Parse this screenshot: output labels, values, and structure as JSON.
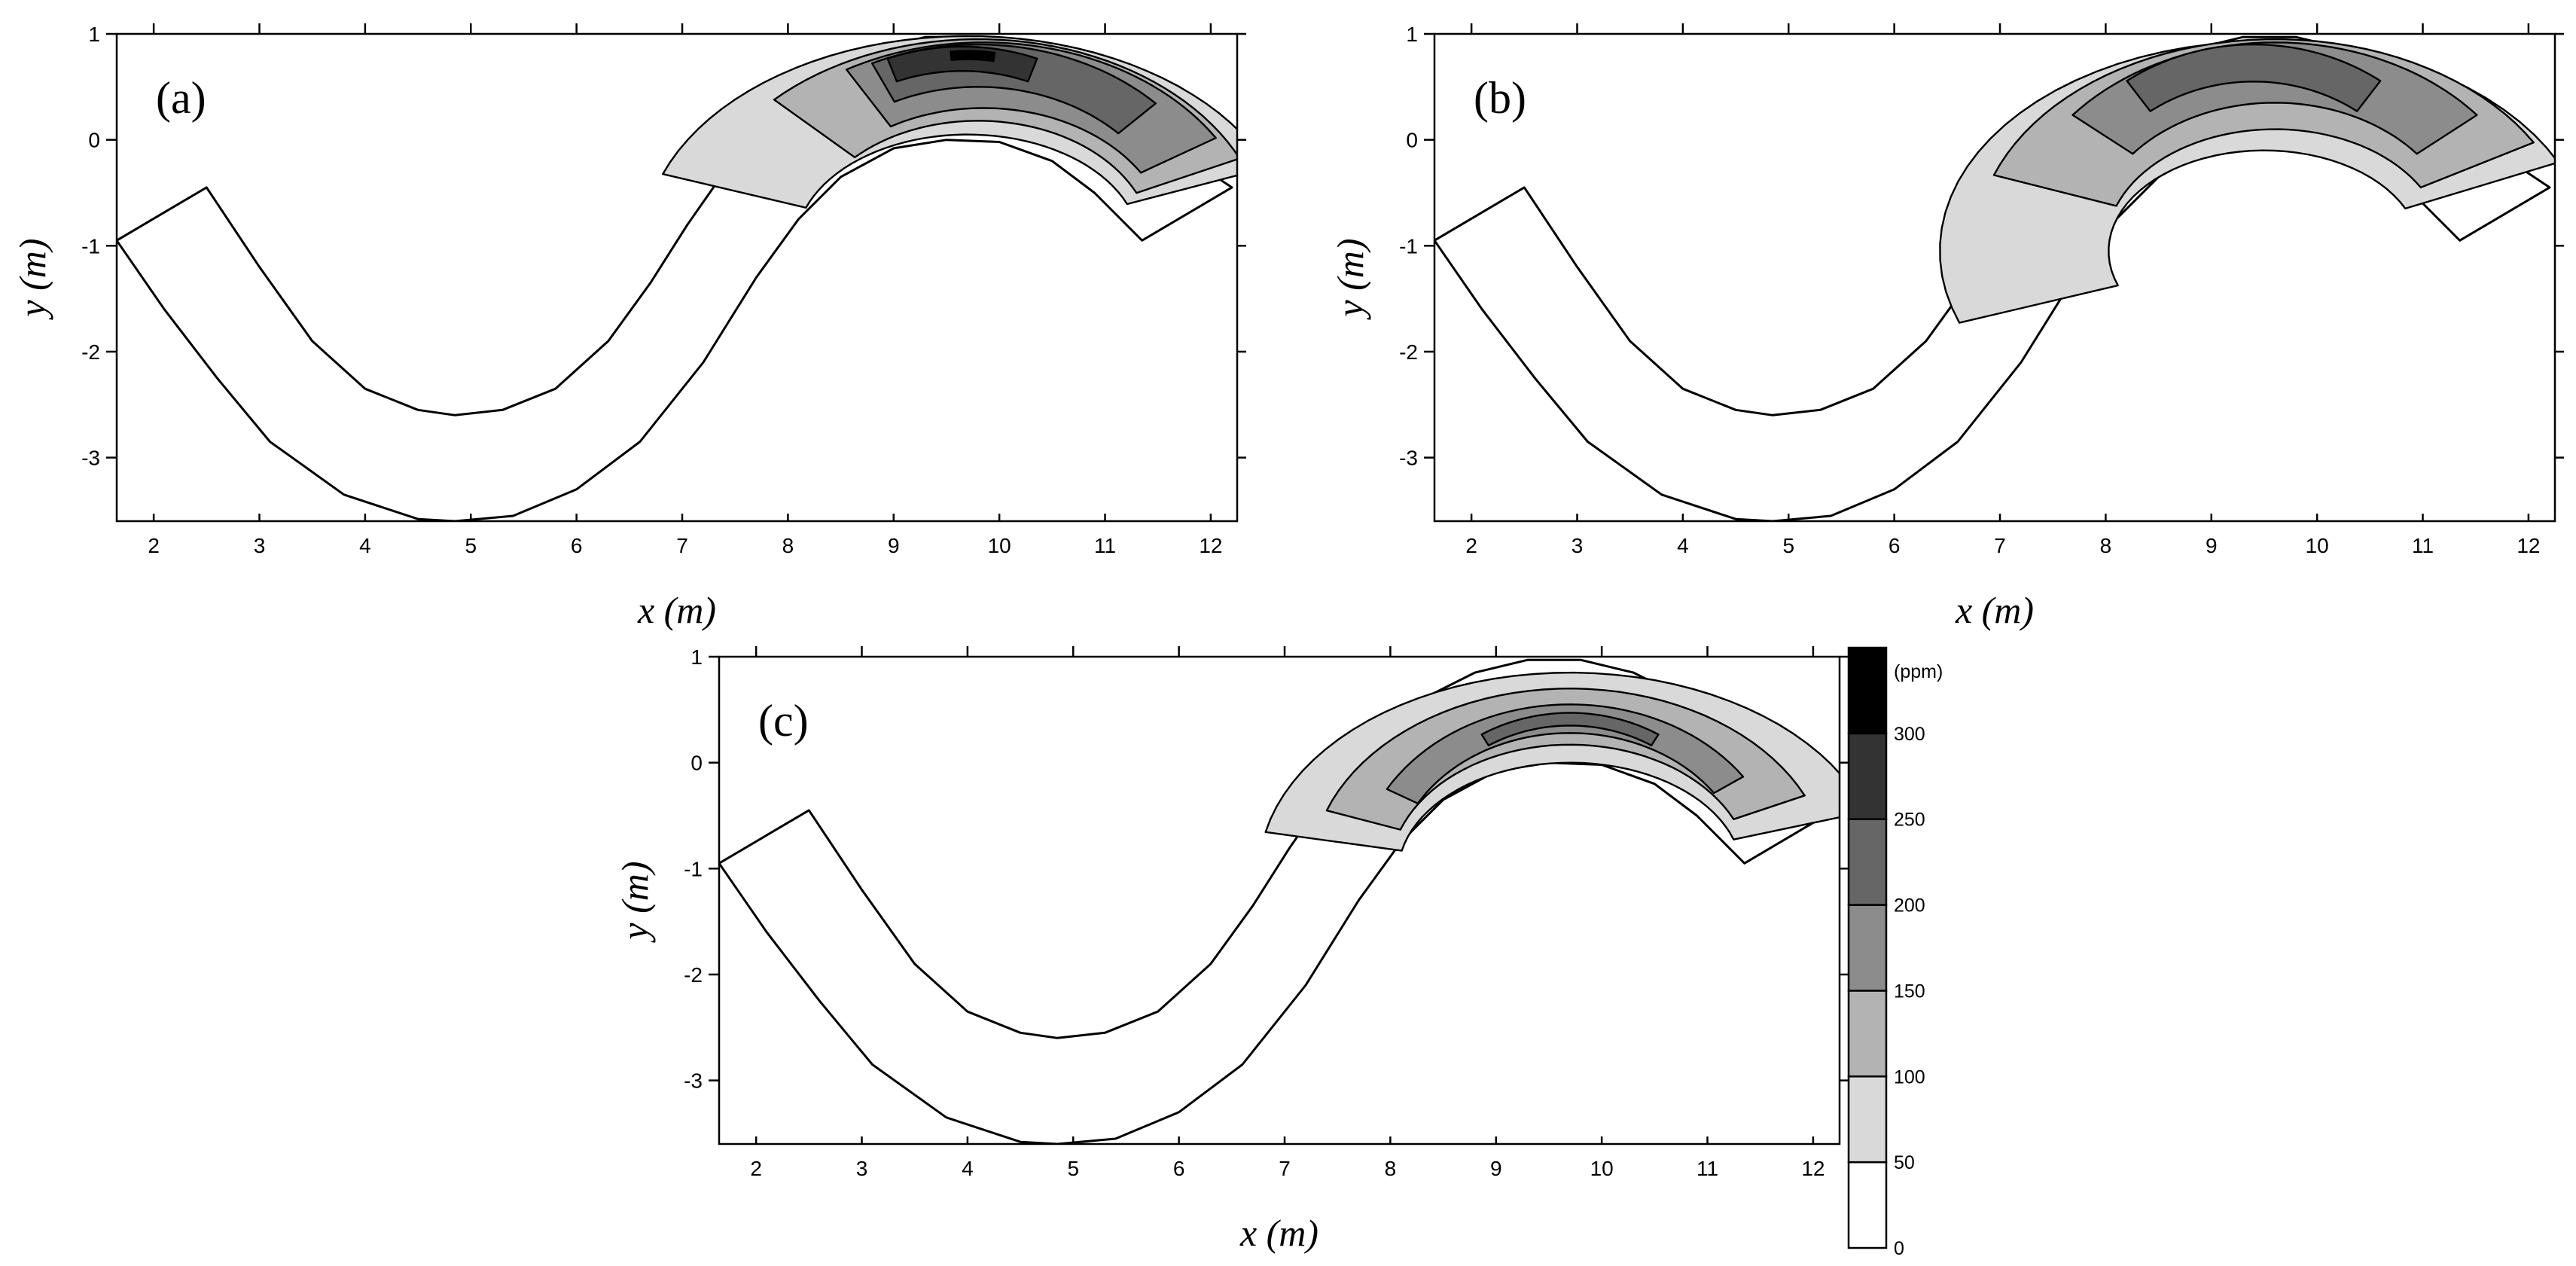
{
  "chart_data": [
    {
      "type": "contour",
      "panel": "(a)",
      "xlabel": "x (m)",
      "ylabel": "y (m)",
      "xlim": [
        1.65,
        12.25
      ],
      "ylim": [
        -3.6,
        1.0
      ],
      "xticks": [
        2,
        3,
        4,
        5,
        6,
        7,
        8,
        9,
        10,
        11,
        12
      ],
      "yticks": [
        1,
        0,
        -1,
        -2,
        -3
      ],
      "xtick_labels": [
        "2",
        "3",
        "4",
        "5",
        "6",
        "7",
        "8",
        "9",
        "10",
        "11",
        "12"
      ],
      "ytick_labels": [
        "1",
        "0",
        "-1",
        "-2",
        "-3"
      ],
      "contour_levels_ppm": [
        50,
        100,
        150,
        200,
        250,
        300
      ],
      "peak_location": [
        9.7,
        0.8
      ],
      "peak_ppm": 320
    },
    {
      "type": "contour",
      "panel": "(b)",
      "xlabel": "x (m)",
      "ylabel": "y (m)",
      "xlim": [
        1.65,
        12.25
      ],
      "ylim": [
        -3.6,
        1.0
      ],
      "xticks": [
        2,
        3,
        4,
        5,
        6,
        7,
        8,
        9,
        10,
        11,
        12
      ],
      "yticks": [
        1,
        0,
        -1,
        -2,
        -3
      ],
      "xtick_labels": [
        "2",
        "3",
        "4",
        "5",
        "6",
        "7",
        "8",
        "9",
        "10",
        "11",
        "12"
      ],
      "ytick_labels": [
        "1",
        "0",
        "-1",
        "-2",
        "-3"
      ],
      "contour_levels_ppm": [
        50,
        100,
        150,
        200
      ],
      "peak_location": [
        9.5,
        0.7
      ],
      "peak_ppm": 240
    },
    {
      "type": "contour",
      "panel": "(c)",
      "xlabel": "x (m)",
      "ylabel": "y (m)",
      "xlim": [
        1.65,
        12.25
      ],
      "ylim": [
        -3.6,
        1.0
      ],
      "xticks": [
        2,
        3,
        4,
        5,
        6,
        7,
        8,
        9,
        10,
        11,
        12
      ],
      "yticks": [
        1,
        0,
        -1,
        -2,
        -3
      ],
      "xtick_labels": [
        "2",
        "3",
        "4",
        "5",
        "6",
        "7",
        "8",
        "9",
        "10",
        "11",
        "12"
      ],
      "ytick_labels": [
        "1",
        "0",
        "-1",
        "-2",
        "-3"
      ],
      "contour_levels_ppm": [
        50,
        100,
        150,
        200
      ],
      "peak_location": [
        9.8,
        0.45
      ],
      "peak_ppm": 220
    }
  ],
  "colorbar": {
    "unit": "(ppm)",
    "levels": [
      "0",
      "50",
      "100",
      "150",
      "200",
      "250",
      "300"
    ],
    "colors": [
      "#ffffff",
      "#d9d9d9",
      "#b3b3b3",
      "#8c8c8c",
      "#666666",
      "#333333",
      "#000000"
    ]
  }
}
